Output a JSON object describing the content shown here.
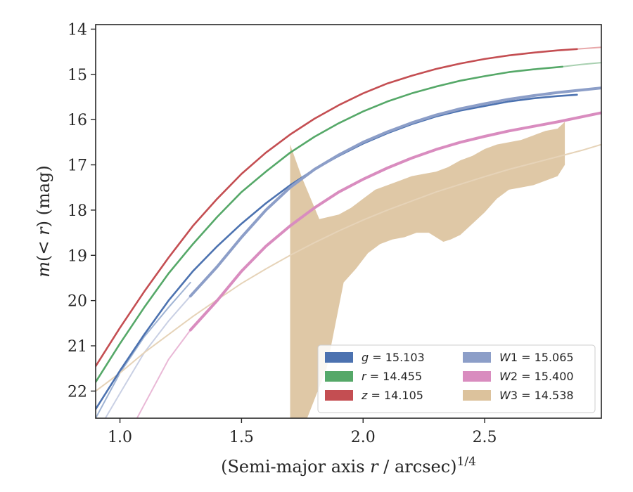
{
  "chart_data": {
    "type": "line",
    "xlabel": "(Semi-major axis r / arcsec)^{1/4}",
    "ylabel": "m(< r) (mag)",
    "xlim": [
      0.9,
      2.98
    ],
    "ylim": [
      22.6,
      13.9
    ],
    "y_inverted": true,
    "grid": false,
    "legend_position": "lower-right",
    "legend_columns": 2,
    "x_ticks": [
      1.0,
      1.5,
      2.0,
      2.5
    ],
    "x_tick_labels": [
      "1.0",
      "1.5",
      "2.0",
      "2.5"
    ],
    "y_ticks": [
      14,
      15,
      16,
      17,
      18,
      19,
      20,
      21,
      22
    ],
    "y_tick_labels": [
      "14",
      "15",
      "16",
      "17",
      "18",
      "19",
      "20",
      "21",
      "22"
    ],
    "series": [
      {
        "name": "g = 15.103",
        "legend_label": "g = 15.103",
        "color": "#4c72b0",
        "x": [
          0.9,
          1.0,
          1.1,
          1.2,
          1.3,
          1.4,
          1.5,
          1.6,
          1.7,
          1.8,
          1.9,
          2.0,
          2.1,
          2.2,
          2.3,
          2.4,
          2.5,
          2.6,
          2.7,
          2.8,
          2.88
        ],
        "y": [
          22.4,
          21.55,
          20.75,
          20.0,
          19.35,
          18.8,
          18.3,
          17.85,
          17.45,
          17.1,
          16.8,
          16.53,
          16.3,
          16.1,
          15.93,
          15.8,
          15.7,
          15.6,
          15.53,
          15.48,
          15.45
        ]
      },
      {
        "name": "r = 14.455",
        "legend_label": "r = 14.455",
        "color": "#55a868",
        "x": [
          0.9,
          1.0,
          1.1,
          1.2,
          1.3,
          1.4,
          1.5,
          1.6,
          1.7,
          1.8,
          1.9,
          2.0,
          2.1,
          2.2,
          2.3,
          2.4,
          2.5,
          2.6,
          2.7,
          2.82
        ],
        "y": [
          21.8,
          20.95,
          20.15,
          19.4,
          18.75,
          18.15,
          17.6,
          17.15,
          16.73,
          16.38,
          16.08,
          15.82,
          15.6,
          15.42,
          15.27,
          15.14,
          15.04,
          14.95,
          14.89,
          14.83
        ]
      },
      {
        "name": "z = 14.105",
        "legend_label": "z = 14.105",
        "color": "#c44e52",
        "x": [
          0.9,
          1.0,
          1.1,
          1.2,
          1.3,
          1.4,
          1.5,
          1.6,
          1.7,
          1.8,
          1.9,
          2.0,
          2.1,
          2.2,
          2.3,
          2.4,
          2.5,
          2.6,
          2.7,
          2.8,
          2.88
        ],
        "y": [
          21.45,
          20.6,
          19.8,
          19.05,
          18.35,
          17.75,
          17.2,
          16.73,
          16.33,
          15.98,
          15.68,
          15.42,
          15.2,
          15.03,
          14.88,
          14.76,
          14.66,
          14.58,
          14.52,
          14.47,
          14.44
        ]
      },
      {
        "name": "W1 = 15.065",
        "legend_label": "W1 = 15.065",
        "color": "#8c9ec8",
        "x": [
          1.29,
          1.4,
          1.5,
          1.6,
          1.7,
          1.8,
          1.9,
          2.0,
          2.1,
          2.2,
          2.3,
          2.4,
          2.5,
          2.6,
          2.7,
          2.8,
          2.98
        ],
        "y": [
          19.9,
          19.25,
          18.6,
          18.0,
          17.5,
          17.1,
          16.78,
          16.5,
          16.27,
          16.07,
          15.9,
          15.76,
          15.65,
          15.55,
          15.47,
          15.4,
          15.3
        ]
      },
      {
        "name": "W2 = 15.400",
        "legend_label": "W2 = 15.400",
        "color": "#d98cbf",
        "x": [
          1.29,
          1.4,
          1.5,
          1.6,
          1.7,
          1.8,
          1.9,
          2.0,
          2.1,
          2.2,
          2.3,
          2.4,
          2.5,
          2.6,
          2.7,
          2.8,
          2.98
        ],
        "y": [
          20.65,
          20.0,
          19.35,
          18.8,
          18.35,
          17.95,
          17.6,
          17.32,
          17.07,
          16.85,
          16.66,
          16.5,
          16.37,
          16.25,
          16.15,
          16.05,
          15.85
        ]
      }
    ],
    "faint_extensions": [
      {
        "of": "g = 15.103",
        "color": "#a0b4d4",
        "x": [
          0.9,
          1.0,
          1.1,
          1.2,
          1.29
        ],
        "y": [
          22.6,
          21.6,
          20.8,
          20.15,
          19.6
        ]
      },
      {
        "of": "W1 = 15.065",
        "color": "#c9d0e4",
        "x": [
          0.94,
          1.0,
          1.1,
          1.2,
          1.29
        ],
        "y": [
          22.6,
          22.05,
          21.15,
          20.45,
          19.9
        ]
      },
      {
        "of": "W2 = 15.400",
        "color": "#e9b8d6",
        "x": [
          1.07,
          1.1,
          1.2,
          1.29
        ],
        "y": [
          22.6,
          22.3,
          21.3,
          20.65
        ]
      },
      {
        "of": "r = 14.455",
        "color": "#a8d0b0",
        "x": [
          2.82,
          2.9,
          2.98
        ],
        "y": [
          14.83,
          14.78,
          14.74
        ]
      },
      {
        "of": "z = 14.105",
        "color": "#e8a8aa",
        "x": [
          2.88,
          2.98
        ],
        "y": [
          14.44,
          14.4
        ]
      },
      {
        "of": "W3 = 14.538",
        "color": "#e6d3b8",
        "x": [
          0.9,
          1.0,
          1.1,
          1.2,
          1.3,
          1.4,
          1.5,
          1.6,
          1.7,
          1.8,
          1.9,
          2.0,
          2.1,
          2.2,
          2.3,
          2.4,
          2.5,
          2.6,
          2.7,
          2.8,
          2.9,
          2.98
        ],
        "y": [
          22.0,
          21.6,
          21.15,
          20.75,
          20.35,
          19.98,
          19.62,
          19.3,
          19.0,
          18.72,
          18.46,
          18.22,
          18.0,
          17.8,
          17.6,
          17.43,
          17.26,
          17.1,
          16.96,
          16.82,
          16.68,
          16.55
        ]
      }
    ],
    "bands": [
      {
        "name": "W3 = 14.538",
        "legend_label": "W3 = 14.538",
        "color": "#dcc29c",
        "upper_x": [
          1.7,
          1.75,
          1.82,
          1.9,
          1.95,
          2.0,
          2.05,
          2.1,
          2.15,
          2.2,
          2.25,
          2.3,
          2.35,
          2.4,
          2.45,
          2.5,
          2.55,
          2.6,
          2.65,
          2.7,
          2.75,
          2.8,
          2.83
        ],
        "upper_y": [
          16.55,
          17.3,
          18.2,
          18.1,
          17.95,
          17.75,
          17.55,
          17.45,
          17.35,
          17.25,
          17.2,
          17.15,
          17.05,
          16.9,
          16.8,
          16.65,
          16.55,
          16.5,
          16.45,
          16.35,
          16.25,
          16.2,
          16.05
        ],
        "lower_x": [
          1.7,
          1.77,
          1.85,
          1.92,
          1.97,
          2.02,
          2.07,
          2.12,
          2.17,
          2.22,
          2.27,
          2.33,
          2.36,
          2.4,
          2.45,
          2.5,
          2.55,
          2.6,
          2.65,
          2.7,
          2.75,
          2.8,
          2.83
        ],
        "lower_y": [
          22.6,
          22.6,
          21.5,
          19.6,
          19.3,
          18.95,
          18.75,
          18.65,
          18.6,
          18.5,
          18.5,
          18.7,
          18.65,
          18.55,
          18.3,
          18.05,
          17.75,
          17.55,
          17.5,
          17.45,
          17.35,
          17.25,
          17.0
        ]
      }
    ]
  }
}
